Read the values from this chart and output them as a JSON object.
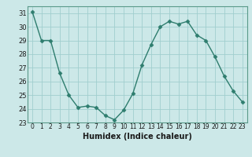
{
  "x": [
    0,
    1,
    2,
    3,
    4,
    5,
    6,
    7,
    8,
    9,
    10,
    11,
    12,
    13,
    14,
    15,
    16,
    17,
    18,
    19,
    20,
    21,
    22,
    23
  ],
  "y": [
    31.1,
    29.0,
    29.0,
    26.6,
    25.0,
    24.1,
    24.2,
    24.1,
    23.5,
    23.2,
    23.9,
    25.1,
    27.2,
    28.7,
    30.0,
    30.4,
    30.2,
    30.4,
    29.4,
    29.0,
    27.8,
    26.4,
    25.3,
    24.5
  ],
  "xlabel": "Humidex (Indice chaleur)",
  "ylim": [
    23,
    31.5
  ],
  "yticks": [
    23,
    24,
    25,
    26,
    27,
    28,
    29,
    30,
    31
  ],
  "xticks": [
    0,
    1,
    2,
    3,
    4,
    5,
    6,
    7,
    8,
    9,
    10,
    11,
    12,
    13,
    14,
    15,
    16,
    17,
    18,
    19,
    20,
    21,
    22,
    23
  ],
  "line_color": "#2e7d6e",
  "marker": "D",
  "marker_size": 2.5,
  "bg_color": "#cce8e8",
  "grid_color": "#a0cece",
  "xtick_fontsize": 5.5,
  "ytick_fontsize": 6.0,
  "xlabel_fontsize": 7.0
}
